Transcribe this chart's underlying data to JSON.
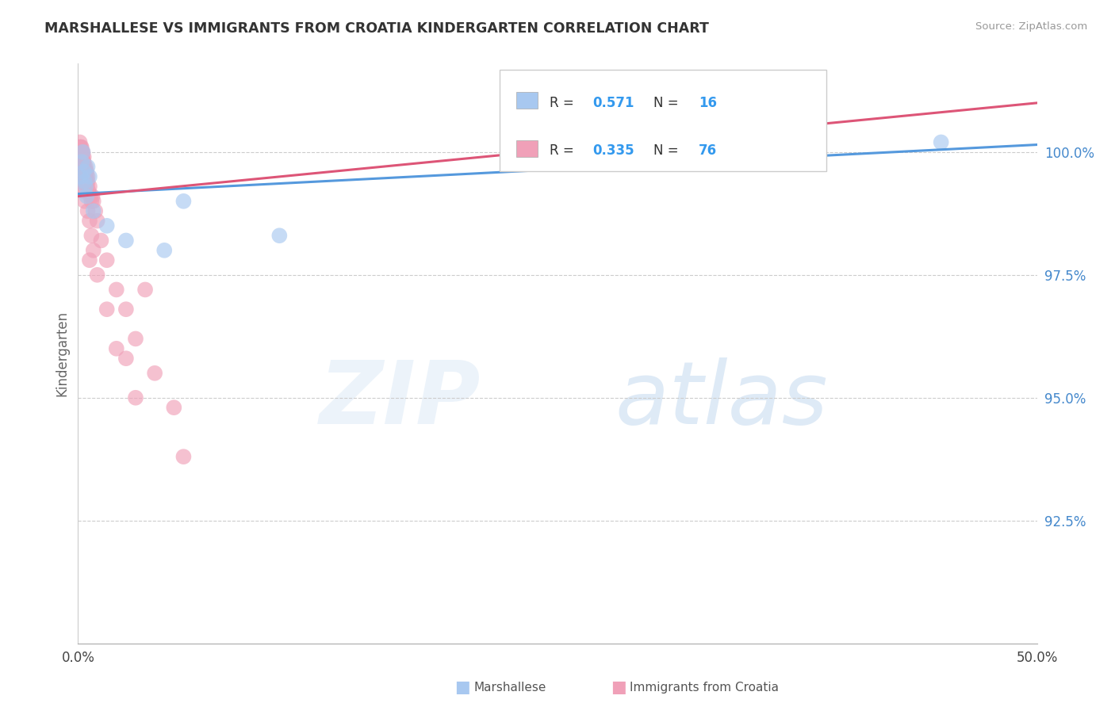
{
  "title": "MARSHALLESE VS IMMIGRANTS FROM CROATIA KINDERGARTEN CORRELATION CHART",
  "source": "Source: ZipAtlas.com",
  "ylabel": "Kindergarten",
  "xlim": [
    0.0,
    50.0
  ],
  "ylim": [
    90.0,
    101.8
  ],
  "yticks": [
    92.5,
    95.0,
    97.5,
    100.0
  ],
  "ytick_labels": [
    "92.5%",
    "95.0%",
    "97.5%",
    "100.0%"
  ],
  "xticks": [
    0.0,
    10.0,
    20.0,
    30.0,
    40.0,
    50.0
  ],
  "xtick_labels": [
    "0.0%",
    "",
    "",
    "",
    "",
    "50.0%"
  ],
  "blue_color": "#A8C8F0",
  "pink_color": "#F0A0B8",
  "blue_line_color": "#5599DD",
  "pink_line_color": "#DD5577",
  "blue_R": "0.571",
  "blue_N": "16",
  "pink_R": "0.335",
  "pink_N": "76",
  "marshallese_x": [
    0.15,
    0.2,
    0.25,
    0.3,
    0.4,
    0.5,
    0.6,
    0.8,
    1.5,
    2.5,
    4.5,
    5.5,
    10.5,
    45.0,
    0.35,
    0.45
  ],
  "marshallese_y": [
    99.5,
    99.8,
    100.0,
    99.6,
    99.3,
    99.7,
    99.5,
    98.8,
    98.5,
    98.2,
    98.0,
    99.0,
    98.3,
    100.2,
    99.4,
    99.1
  ],
  "croatia_x": [
    0.05,
    0.07,
    0.08,
    0.09,
    0.1,
    0.1,
    0.11,
    0.12,
    0.13,
    0.14,
    0.15,
    0.15,
    0.16,
    0.17,
    0.18,
    0.18,
    0.19,
    0.2,
    0.2,
    0.21,
    0.22,
    0.23,
    0.24,
    0.25,
    0.25,
    0.26,
    0.27,
    0.28,
    0.3,
    0.3,
    0.32,
    0.33,
    0.35,
    0.35,
    0.37,
    0.38,
    0.4,
    0.4,
    0.42,
    0.43,
    0.45,
    0.48,
    0.5,
    0.5,
    0.55,
    0.6,
    0.65,
    0.7,
    0.75,
    0.8,
    0.9,
    1.0,
    1.2,
    1.5,
    2.0,
    2.5,
    3.0,
    4.0,
    5.0,
    0.15,
    0.2,
    0.25,
    0.3,
    0.35,
    0.5,
    0.6,
    0.7,
    0.8,
    1.0,
    1.5,
    2.0,
    3.0,
    0.6,
    2.5,
    3.5,
    5.5
  ],
  "croatia_y": [
    100.0,
    100.1,
    100.0,
    100.2,
    100.0,
    99.9,
    100.1,
    100.0,
    99.8,
    99.9,
    100.0,
    100.1,
    99.8,
    100.0,
    99.9,
    100.1,
    100.0,
    99.8,
    99.9,
    100.0,
    99.7,
    99.8,
    99.9,
    100.0,
    99.7,
    99.8,
    99.6,
    99.7,
    99.8,
    99.9,
    99.6,
    99.7,
    99.5,
    99.6,
    99.4,
    99.5,
    99.6,
    99.7,
    99.4,
    99.5,
    99.6,
    99.3,
    99.5,
    99.4,
    99.2,
    99.3,
    99.1,
    99.0,
    99.1,
    99.0,
    98.8,
    98.6,
    98.2,
    97.8,
    97.2,
    96.8,
    96.2,
    95.5,
    94.8,
    99.5,
    99.4,
    99.3,
    99.2,
    99.0,
    98.8,
    98.6,
    98.3,
    98.0,
    97.5,
    96.8,
    96.0,
    95.0,
    97.8,
    95.8,
    97.2,
    93.8
  ]
}
